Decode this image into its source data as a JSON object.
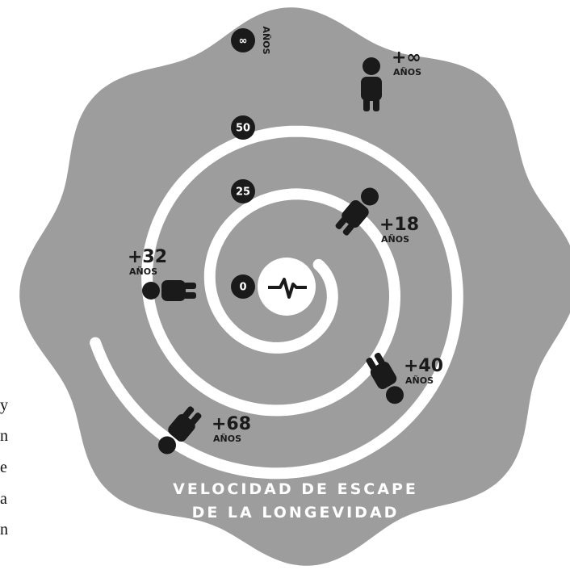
{
  "title": [
    "VELOCIDAD DE ESCAPE",
    "DE LA LONGEVIDAD"
  ],
  "milestones": [
    "0",
    "25",
    "50",
    "∞"
  ],
  "infinity_unit": "AÑOS",
  "people": [
    {
      "gain": "+∞",
      "unit": "AÑOS"
    },
    {
      "gain": "+18",
      "unit": "AÑOS"
    },
    {
      "gain": "+32",
      "unit": "AÑOS"
    },
    {
      "gain": "+40",
      "unit": "AÑOS"
    },
    {
      "gain": "+68",
      "unit": "AÑOS"
    }
  ],
  "side_text": [
    "y",
    "n",
    "e",
    "a",
    "n"
  ]
}
